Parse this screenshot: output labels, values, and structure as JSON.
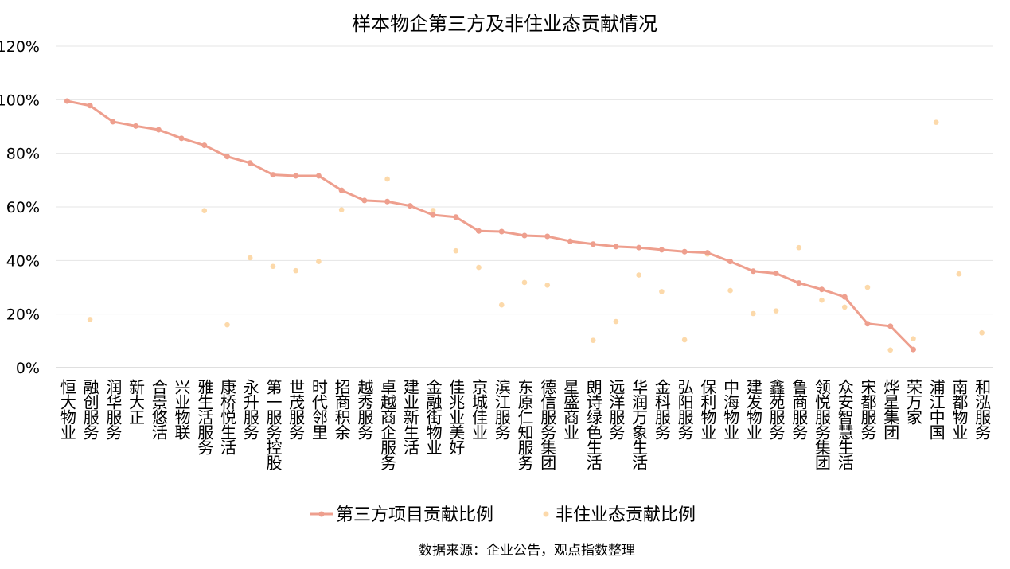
{
  "chart_data": {
    "type": "line",
    "title": "样本物企第三方及非住业态贡献情况",
    "source": "数据来源：企业公告，观点指数整理",
    "ylim": [
      0,
      120
    ],
    "yticks": [
      "0%",
      "20%",
      "40%",
      "60%",
      "80%",
      "100%",
      "120%"
    ],
    "grid": true,
    "legend_placement": "bottom",
    "categories": [
      "恒大物业",
      "融创服务",
      "润华服务",
      "新大正",
      "合景悠活",
      "兴业物联",
      "雅生活服务",
      "康桥悦生活",
      "永升服务",
      "第一服务控股",
      "世茂服务",
      "时代邻里",
      "招商积余",
      "越秀服务",
      "卓越商企服务",
      "建业新生活",
      "金融街物业",
      "佳兆业美好",
      "京城佳业",
      "滨江服务",
      "东原仁知服务",
      "德信服务集团",
      "星盛商业",
      "朗诗绿色生活",
      "远洋服务",
      "华润万象生活",
      "金科服务",
      "弘阳服务",
      "保利物业",
      "中海物业",
      "建发物业",
      "鑫苑服务",
      "鲁商服务",
      "领悦服务集团",
      "众安智慧生活",
      "宋都服务",
      "烨星集团",
      "荣万家",
      "浦江中国",
      "南都物业",
      "和泓服务"
    ],
    "series": [
      {
        "name": "第三方项目贡献比例",
        "kind": "line",
        "color": "#ee9f8e",
        "values": [
          99.5,
          97.8,
          91.8,
          90.2,
          88.8,
          85.6,
          83.0,
          78.8,
          76.4,
          72.0,
          71.6,
          71.6,
          66.2,
          62.4,
          62.0,
          60.4,
          57.0,
          56.2,
          51.0,
          50.8,
          49.3,
          49.0,
          47.2,
          46.1,
          45.2,
          44.8,
          44.0,
          43.3,
          42.9,
          39.6,
          36.0,
          35.2,
          31.6,
          29.2,
          26.4,
          16.4,
          15.5,
          6.8,
          null,
          null,
          null
        ]
      },
      {
        "name": "非住业态贡献比例",
        "kind": "scatter",
        "color": "#fcd9aa",
        "values": [
          null,
          18.0,
          null,
          null,
          null,
          null,
          58.6,
          16.0,
          41.0,
          37.8,
          36.2,
          39.6,
          58.9,
          null,
          70.4,
          null,
          58.7,
          43.6,
          37.4,
          23.4,
          31.8,
          30.8,
          null,
          10.2,
          17.2,
          34.6,
          28.4,
          10.4,
          42.4,
          28.8,
          20.2,
          21.2,
          44.8,
          25.2,
          22.6,
          30.0,
          6.6,
          10.8,
          91.6,
          35.0,
          13.0
        ]
      }
    ]
  }
}
